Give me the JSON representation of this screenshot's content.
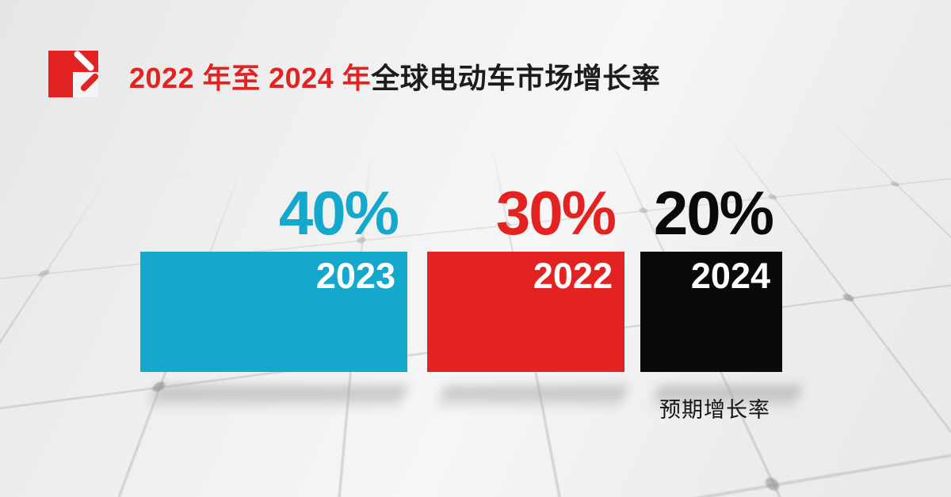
{
  "brand": {
    "accent_red": "#E32322"
  },
  "header": {
    "title_highlight": "2022 年至 2024 年",
    "title_rest": "全球电动车市场增长率",
    "highlight_color": "#E32322",
    "text_color": "#1C1C1C"
  },
  "bars": [
    {
      "year": "2023",
      "pct": "40%",
      "color": "#14A8CC",
      "label_color": "#FFFFFF"
    },
    {
      "year": "2022",
      "pct": "30%",
      "color": "#E32322",
      "label_color": "#FFFFFF"
    },
    {
      "year": "2024",
      "pct": "20%",
      "color": "#0A0A0A",
      "label_color": "#FFFFFF"
    }
  ],
  "footnote": {
    "label": "预期增长率",
    "color": "#151515"
  },
  "chart_data": {
    "type": "bar",
    "title": "2022 年至 2024 年全球电动车市场增长率",
    "categories": [
      "2023",
      "2022",
      "2024"
    ],
    "values": [
      40,
      30,
      20
    ],
    "unit": "%",
    "colors": [
      "#14A8CC",
      "#E32322",
      "#0A0A0A"
    ],
    "annotation": "预期增长率",
    "legend_position": "none",
    "axes": "none",
    "value_labels_shown": [
      "40%",
      "30%",
      "20%"
    ]
  }
}
